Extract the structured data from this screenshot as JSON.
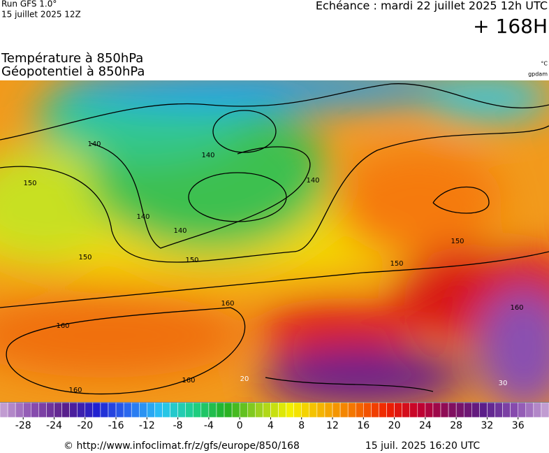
{
  "header": {
    "run": "Run GFS 1.0°",
    "run_date": "15 juillet 2025 12Z",
    "echeance": "Echéance : mardi 22 juillet 2025 12h UTC",
    "lead": "+ 168H"
  },
  "titles": {
    "line1": "Température à 850hPa",
    "line2": "Géopotentiel à 850hPa",
    "unit1": "°C",
    "unit2": "gpdam"
  },
  "map": {
    "contour_labels": [
      "140",
      "140",
      "140",
      "140",
      "140",
      "150",
      "150",
      "150",
      "150",
      "150",
      "160",
      "160",
      "160",
      "160",
      "160",
      "20",
      "30"
    ]
  },
  "colorbar": {
    "lim": [
      -31,
      40
    ],
    "ticks": [
      -28,
      -24,
      -20,
      -16,
      -12,
      -8,
      -4,
      0,
      4,
      8,
      12,
      16,
      20,
      24,
      28,
      32,
      36
    ],
    "colors": [
      "#c9a6d6",
      "#8a4fb0",
      "#5a1f8a",
      "#2020d0",
      "#2a6cf0",
      "#29c4f5",
      "#1fd08a",
      "#22b022",
      "#9ad020",
      "#f4f000",
      "#f4b000",
      "#f47000",
      "#ee2000",
      "#c00030",
      "#801060",
      "#5a1f8a",
      "#8a4fb0",
      "#c9a6d6"
    ]
  },
  "footer": {
    "source": "© http://www.infoclimat.fr/z/gfs/europe/850/168",
    "generated": "15 juil. 2025 16:20 UTC"
  }
}
